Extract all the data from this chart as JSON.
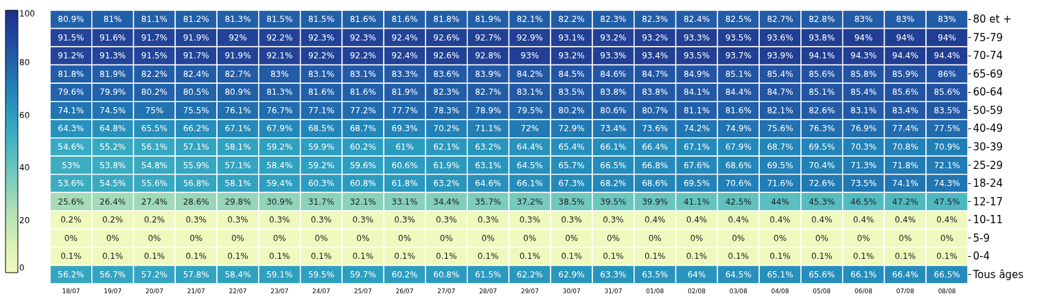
{
  "chart_data": {
    "type": "heatmap",
    "categories": [
      "18/07",
      "19/07",
      "20/07",
      "21/07",
      "22/07",
      "23/07",
      "24/07",
      "25/07",
      "26/07",
      "27/07",
      "28/07",
      "29/07",
      "30/07",
      "31/07",
      "01/08",
      "02/08",
      "03/08",
      "04/08",
      "05/08",
      "06/08",
      "07/08",
      "08/08"
    ],
    "y_categories": [
      "80 et +",
      "75-79",
      "70-74",
      "65-69",
      "60-64",
      "50-59",
      "40-49",
      "30-39",
      "25-29",
      "18-24",
      "12-17",
      "10-11",
      "5-9",
      "0-4",
      "Tous âges"
    ],
    "cells": [
      [
        80.9,
        81,
        81.1,
        81.2,
        81.3,
        81.5,
        81.5,
        81.6,
        81.6,
        81.8,
        81.9,
        82.1,
        82.2,
        82.3,
        82.3,
        82.4,
        82.5,
        82.7,
        82.8,
        83,
        83,
        83
      ],
      [
        91.5,
        91.6,
        91.7,
        91.9,
        92,
        92.2,
        92.3,
        92.3,
        92.4,
        92.6,
        92.7,
        92.9,
        93.1,
        93.2,
        93.2,
        93.3,
        93.5,
        93.6,
        93.8,
        94,
        94,
        94
      ],
      [
        91.2,
        91.3,
        91.5,
        91.7,
        91.9,
        92.1,
        92.2,
        92.2,
        92.4,
        92.6,
        92.8,
        93,
        93.2,
        93.3,
        93.4,
        93.5,
        93.7,
        93.9,
        94.1,
        94.3,
        94.4,
        94.4
      ],
      [
        81.8,
        81.9,
        82.2,
        82.4,
        82.7,
        83,
        83.1,
        83.1,
        83.3,
        83.6,
        83.9,
        84.2,
        84.5,
        84.6,
        84.7,
        84.9,
        85.1,
        85.4,
        85.6,
        85.8,
        85.9,
        86
      ],
      [
        79.6,
        79.9,
        80.2,
        80.5,
        80.9,
        81.3,
        81.6,
        81.6,
        81.9,
        82.3,
        82.7,
        83.1,
        83.5,
        83.8,
        83.8,
        84.1,
        84.4,
        84.7,
        85.1,
        85.4,
        85.6,
        85.6
      ],
      [
        74.1,
        74.5,
        75,
        75.5,
        76.1,
        76.7,
        77.1,
        77.2,
        77.7,
        78.3,
        78.9,
        79.5,
        80.2,
        80.6,
        80.7,
        81.1,
        81.6,
        82.1,
        82.6,
        83.1,
        83.4,
        83.5
      ],
      [
        64.3,
        64.8,
        65.5,
        66.2,
        67.1,
        67.9,
        68.5,
        68.7,
        69.3,
        70.2,
        71.1,
        72,
        72.9,
        73.4,
        73.6,
        74.2,
        74.9,
        75.6,
        76.3,
        76.9,
        77.4,
        77.5
      ],
      [
        54.6,
        55.2,
        56.1,
        57.1,
        58.1,
        59.2,
        59.9,
        60.2,
        61,
        62.1,
        63.2,
        64.4,
        65.4,
        66.1,
        66.4,
        67.1,
        67.9,
        68.7,
        69.5,
        70.3,
        70.8,
        70.9
      ],
      [
        53,
        53.8,
        54.8,
        55.9,
        57.1,
        58.4,
        59.2,
        59.6,
        60.6,
        61.9,
        63.1,
        64.5,
        65.7,
        66.5,
        66.8,
        67.6,
        68.6,
        69.5,
        70.4,
        71.3,
        71.8,
        72.1
      ],
      [
        53.6,
        54.5,
        55.6,
        56.8,
        58.1,
        59.4,
        60.3,
        60.8,
        61.8,
        63.2,
        64.6,
        66.1,
        67.3,
        68.2,
        68.6,
        69.5,
        70.6,
        71.6,
        72.6,
        73.5,
        74.1,
        74.3
      ],
      [
        25.6,
        26.4,
        27.4,
        28.6,
        29.8,
        30.9,
        31.7,
        32.1,
        33.1,
        34.4,
        35.7,
        37.2,
        38.5,
        39.5,
        39.9,
        41.1,
        42.5,
        44,
        45.3,
        46.5,
        47.2,
        47.5
      ],
      [
        0.2,
        0.2,
        0.2,
        0.3,
        0.3,
        0.3,
        0.3,
        0.3,
        0.3,
        0.3,
        0.3,
        0.3,
        0.3,
        0.3,
        0.4,
        0.4,
        0.4,
        0.4,
        0.4,
        0.4,
        0.4,
        0.4
      ],
      [
        0,
        0,
        0,
        0,
        0,
        0,
        0,
        0,
        0,
        0,
        0,
        0,
        0,
        0,
        0,
        0,
        0,
        0,
        0,
        0,
        0,
        0
      ],
      [
        0.1,
        0.1,
        0.1,
        0.1,
        0.1,
        0.1,
        0.1,
        0.1,
        0.1,
        0.1,
        0.1,
        0.1,
        0.1,
        0.1,
        0.1,
        0.1,
        0.1,
        0.1,
        0.1,
        0.1,
        0.1,
        0.1
      ],
      [
        56.2,
        56.7,
        57.2,
        57.8,
        58.4,
        59.1,
        59.5,
        59.7,
        60.2,
        60.8,
        61.5,
        62.2,
        62.9,
        63.3,
        63.5,
        64,
        64.5,
        65.1,
        65.6,
        66.1,
        66.4,
        66.5
      ]
    ],
    "cell_labels": [
      [
        "80.9%",
        "81%",
        "81.1%",
        "81.2%",
        "81.3%",
        "81.5%",
        "81.5%",
        "81.6%",
        "81.6%",
        "81.8%",
        "81.9%",
        "82.1%",
        "82.2%",
        "82.3%",
        "82.3%",
        "82.4%",
        "82.5%",
        "82.7%",
        "82.8%",
        "83%",
        "83%",
        "83%"
      ],
      [
        "91.5%",
        "91.6%",
        "91.7%",
        "91.9%",
        "92%",
        "92.2%",
        "92.3%",
        "92.3%",
        "92.4%",
        "92.6%",
        "92.7%",
        "92.9%",
        "93.1%",
        "93.2%",
        "93.2%",
        "93.3%",
        "93.5%",
        "93.6%",
        "93.8%",
        "94%",
        "94%",
        "94%"
      ],
      [
        "91.2%",
        "91.3%",
        "91.5%",
        "91.7%",
        "91.9%",
        "92.1%",
        "92.2%",
        "92.2%",
        "92.4%",
        "92.6%",
        "92.8%",
        "93%",
        "93.2%",
        "93.3%",
        "93.4%",
        "93.5%",
        "93.7%",
        "93.9%",
        "94.1%",
        "94.3%",
        "94.4%",
        "94.4%"
      ],
      [
        "81.8%",
        "81.9%",
        "82.2%",
        "82.4%",
        "82.7%",
        "83%",
        "83.1%",
        "83.1%",
        "83.3%",
        "83.6%",
        "83.9%",
        "84.2%",
        "84.5%",
        "84.6%",
        "84.7%",
        "84.9%",
        "85.1%",
        "85.4%",
        "85.6%",
        "85.8%",
        "85.9%",
        "86%"
      ],
      [
        "79.6%",
        "79.9%",
        "80.2%",
        "80.5%",
        "80.9%",
        "81.3%",
        "81.6%",
        "81.6%",
        "81.9%",
        "82.3%",
        "82.7%",
        "83.1%",
        "83.5%",
        "83.8%",
        "83.8%",
        "84.1%",
        "84.4%",
        "84.7%",
        "85.1%",
        "85.4%",
        "85.6%",
        "85.6%"
      ],
      [
        "74.1%",
        "74.5%",
        "75%",
        "75.5%",
        "76.1%",
        "76.7%",
        "77.1%",
        "77.2%",
        "77.7%",
        "78.3%",
        "78.9%",
        "79.5%",
        "80.2%",
        "80.6%",
        "80.7%",
        "81.1%",
        "81.6%",
        "82.1%",
        "82.6%",
        "83.1%",
        "83.4%",
        "83.5%"
      ],
      [
        "64.3%",
        "64.8%",
        "65.5%",
        "66.2%",
        "67.1%",
        "67.9%",
        "68.5%",
        "68.7%",
        "69.3%",
        "70.2%",
        "71.1%",
        "72%",
        "72.9%",
        "73.4%",
        "73.6%",
        "74.2%",
        "74.9%",
        "75.6%",
        "76.3%",
        "76.9%",
        "77.4%",
        "77.5%"
      ],
      [
        "54.6%",
        "55.2%",
        "56.1%",
        "57.1%",
        "58.1%",
        "59.2%",
        "59.9%",
        "60.2%",
        "61%",
        "62.1%",
        "63.2%",
        "64.4%",
        "65.4%",
        "66.1%",
        "66.4%",
        "67.1%",
        "67.9%",
        "68.7%",
        "69.5%",
        "70.3%",
        "70.8%",
        "70.9%"
      ],
      [
        "53%",
        "53.8%",
        "54.8%",
        "55.9%",
        "57.1%",
        "58.4%",
        "59.2%",
        "59.6%",
        "60.6%",
        "61.9%",
        "63.1%",
        "64.5%",
        "65.7%",
        "66.5%",
        "66.8%",
        "67.6%",
        "68.6%",
        "69.5%",
        "70.4%",
        "71.3%",
        "71.8%",
        "72.1%"
      ],
      [
        "53.6%",
        "54.5%",
        "55.6%",
        "56.8%",
        "58.1%",
        "59.4%",
        "60.3%",
        "60.8%",
        "61.8%",
        "63.2%",
        "64.6%",
        "66.1%",
        "67.3%",
        "68.2%",
        "68.6%",
        "69.5%",
        "70.6%",
        "71.6%",
        "72.6%",
        "73.5%",
        "74.1%",
        "74.3%"
      ],
      [
        "25.6%",
        "26.4%",
        "27.4%",
        "28.6%",
        "29.8%",
        "30.9%",
        "31.7%",
        "32.1%",
        "33.1%",
        "34.4%",
        "35.7%",
        "37.2%",
        "38.5%",
        "39.5%",
        "39.9%",
        "41.1%",
        "42.5%",
        "44%",
        "45.3%",
        "46.5%",
        "47.2%",
        "47.5%"
      ],
      [
        "0.2%",
        "0.2%",
        "0.2%",
        "0.3%",
        "0.3%",
        "0.3%",
        "0.3%",
        "0.3%",
        "0.3%",
        "0.3%",
        "0.3%",
        "0.3%",
        "0.3%",
        "0.3%",
        "0.4%",
        "0.4%",
        "0.4%",
        "0.4%",
        "0.4%",
        "0.4%",
        "0.4%",
        "0.4%"
      ],
      [
        "0%",
        "0%",
        "0%",
        "0%",
        "0%",
        "0%",
        "0%",
        "0%",
        "0%",
        "0%",
        "0%",
        "0%",
        "0%",
        "0%",
        "0%",
        "0%",
        "0%",
        "0%",
        "0%",
        "0%",
        "0%",
        "0%"
      ],
      [
        "0.1%",
        "0.1%",
        "0.1%",
        "0.1%",
        "0.1%",
        "0.1%",
        "0.1%",
        "0.1%",
        "0.1%",
        "0.1%",
        "0.1%",
        "0.1%",
        "0.1%",
        "0.1%",
        "0.1%",
        "0.1%",
        "0.1%",
        "0.1%",
        "0.1%",
        "0.1%",
        "0.1%",
        "0.1%"
      ],
      [
        "56.2%",
        "56.7%",
        "57.2%",
        "57.8%",
        "58.4%",
        "59.1%",
        "59.5%",
        "59.7%",
        "60.2%",
        "60.8%",
        "61.5%",
        "62.2%",
        "62.9%",
        "63.3%",
        "63.5%",
        "64%",
        "64.5%",
        "65.1%",
        "65.6%",
        "66.1%",
        "66.4%",
        "66.5%"
      ]
    ],
    "clim": [
      0,
      100
    ],
    "cticks": [
      0,
      20,
      40,
      60,
      80,
      100
    ]
  }
}
